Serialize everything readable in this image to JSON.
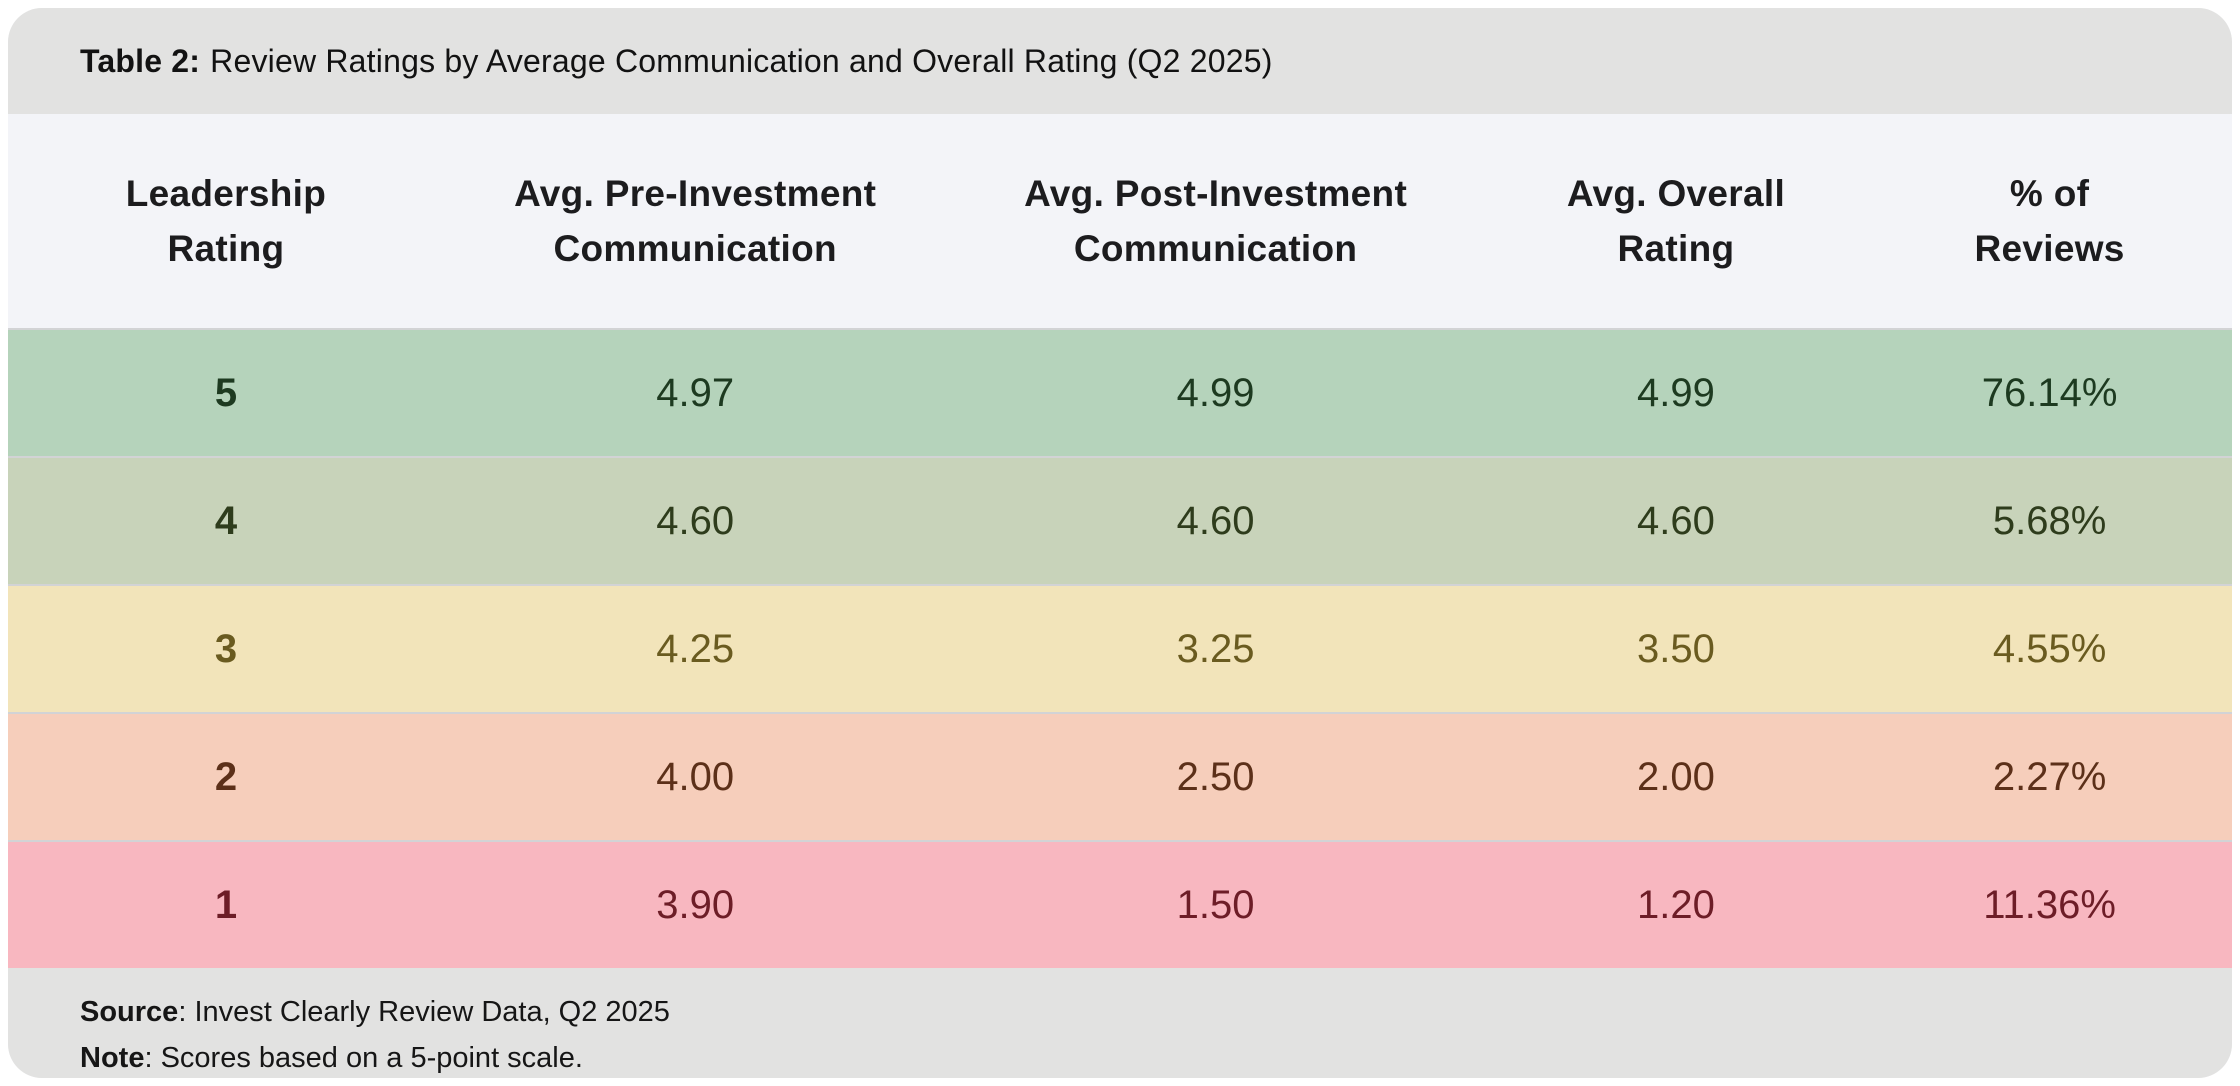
{
  "title": {
    "prefix": "Table 2:",
    "text": "Review Ratings by Average Communication and Overall Rating (Q2 2025)"
  },
  "table": {
    "headers": [
      {
        "line1": "Leadership",
        "line2": "Rating"
      },
      {
        "line1": "Avg. Pre-Investment",
        "line2": "Communication"
      },
      {
        "line1": "Avg. Post-Investment",
        "line2": "Communication"
      },
      {
        "line1": "Avg. Overall",
        "line2": "Rating"
      },
      {
        "line1": "% of",
        "line2": "Reviews"
      }
    ],
    "rows": [
      {
        "rating": "5",
        "pre": "4.97",
        "post": "4.99",
        "overall": "4.99",
        "pct_reviews": "76.14%",
        "bg_color": "#b5d3bb",
        "text_color": "#1d3a20"
      },
      {
        "rating": "4",
        "pre": "4.60",
        "post": "4.60",
        "overall": "4.60",
        "pct_reviews": "5.68%",
        "bg_color": "#c8d3ba",
        "text_color": "#2e3c1c"
      },
      {
        "rating": "3",
        "pre": "4.25",
        "post": "3.25",
        "overall": "3.50",
        "pct_reviews": "4.55%",
        "bg_color": "#f2e4ba",
        "text_color": "#6a5b20"
      },
      {
        "rating": "2",
        "pre": "4.00",
        "post": "2.50",
        "overall": "2.00",
        "pct_reviews": "2.27%",
        "bg_color": "#f6cebb",
        "text_color": "#5c3019"
      },
      {
        "rating": "1",
        "pre": "3.90",
        "post": "1.50",
        "overall": "1.20",
        "pct_reviews": "11.36%",
        "bg_color": "#f8b7c0",
        "text_color": "#6d1d27"
      }
    ]
  },
  "footer": {
    "source_label": "Source",
    "source_text": ": Invest Clearly Review Data, Q2 2025",
    "note_label": "Note",
    "note_text": ": Scores based on a 5-point scale."
  },
  "chart_data": {
    "type": "table",
    "title": "Table 2: Review Ratings by Average Communication and Overall Rating (Q2 2025)",
    "columns": [
      "Leadership Rating",
      "Avg. Pre-Investment Communication",
      "Avg. Post-Investment Communication",
      "Avg. Overall Rating",
      "% of Reviews"
    ],
    "rows": [
      [
        5,
        4.97,
        4.99,
        4.99,
        "76.14%"
      ],
      [
        4,
        4.6,
        4.6,
        4.6,
        "5.68%"
      ],
      [
        3,
        4.25,
        3.25,
        3.5,
        "4.55%"
      ],
      [
        2,
        4.0,
        2.5,
        2.0,
        "2.27%"
      ],
      [
        1,
        3.9,
        1.5,
        1.2,
        "11.36%"
      ]
    ],
    "row_status_colors": [
      "#b5d3bb",
      "#c8d3ba",
      "#f2e4ba",
      "#f6cebb",
      "#f8b7c0"
    ],
    "source": "Invest Clearly Review Data, Q2 2025",
    "note": "Scores based on a 5-point scale."
  }
}
